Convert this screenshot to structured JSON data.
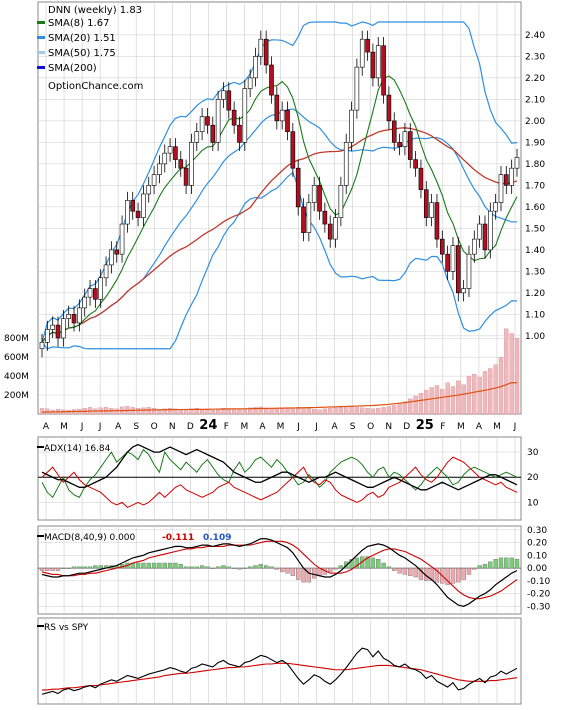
{
  "colors": {
    "up": "#ffffff",
    "down": "#b01020",
    "sma8": "#1a7a1a",
    "sma20": "#2e8fe0",
    "sma50": "#c0392b",
    "sma200": "#1010d0",
    "volume": "#f0b8bc",
    "adx": "#000000",
    "plus_di": "#1a7a1a",
    "minus_di": "#d00000",
    "macd": "#000000",
    "signal": "#d00000",
    "hist_pos": "#7acb7a",
    "hist_neg": "#f0a8ae",
    "rs": "#000000",
    "rs_ma": "#d00000",
    "grid": "#cccccc"
  },
  "chart_data": [
    {
      "type": "candlestick",
      "ticker_label": "DNN (weekly) 1.83",
      "legend": [
        {
          "label": "SMA(8) 1.67",
          "color": "#1a7a1a"
        },
        {
          "label": "SMA(20) 1.51",
          "color": "#2e8fe0"
        },
        {
          "label": "SMA(50) 1.75",
          "color": "#9ccbee"
        },
        {
          "label": "SMA(200)",
          "color": "#1010d0"
        }
      ],
      "source": "OptionChance.com",
      "x_ticks": [
        "A",
        "M",
        "J",
        "J",
        "A",
        "S",
        "O",
        "N",
        "D",
        "24",
        "F",
        "M",
        "A",
        "M",
        "J",
        "J",
        "A",
        "S",
        "O",
        "N",
        "D",
        "25",
        "F",
        "M",
        "A",
        "M",
        "J"
      ],
      "y_ticks": [
        "2.40",
        "2.30",
        "2.20",
        "2.10",
        "2.00",
        "1.90",
        "1.80",
        "1.70",
        "1.60",
        "1.50",
        "1.40",
        "1.30",
        "1.20",
        "1.10",
        "1.00"
      ],
      "ylim": [
        0.98,
        2.45
      ],
      "close": [
        0.97,
        1.03,
        1.05,
        0.99,
        1.08,
        1.1,
        1.06,
        1.13,
        1.18,
        1.22,
        1.17,
        1.27,
        1.33,
        1.4,
        1.38,
        1.52,
        1.63,
        1.58,
        1.55,
        1.66,
        1.7,
        1.75,
        1.8,
        1.85,
        1.88,
        1.82,
        1.78,
        1.7,
        1.9,
        1.95,
        2.02,
        1.98,
        1.9,
        2.1,
        2.14,
        2.05,
        1.98,
        1.9,
        2.15,
        2.2,
        2.3,
        2.38,
        2.26,
        2.12,
        2.0,
        2.05,
        1.95,
        1.78,
        1.6,
        1.48,
        1.62,
        1.7,
        1.58,
        1.52,
        1.45,
        1.55,
        1.7,
        1.9,
        2.05,
        2.25,
        2.38,
        2.32,
        2.2,
        2.35,
        2.12,
        2.0,
        1.9,
        1.88,
        1.95,
        1.82,
        1.78,
        1.68,
        1.55,
        1.62,
        1.45,
        1.38,
        1.3,
        1.42,
        1.2,
        1.22,
        1.38,
        1.45,
        1.52,
        1.4,
        1.58,
        1.62,
        1.75,
        1.7,
        1.78,
        1.83
      ]
    },
    {
      "type": "bar",
      "name": "volume",
      "y_ticks": [
        "800M",
        "600M",
        "400M",
        "200M"
      ],
      "ylim": [
        0,
        950
      ],
      "values": [
        60,
        55,
        40,
        50,
        45,
        40,
        48,
        52,
        60,
        70,
        55,
        65,
        70,
        60,
        55,
        75,
        80,
        70,
        60,
        65,
        70,
        60,
        50,
        55,
        60,
        55,
        50,
        45,
        55,
        60,
        50,
        45,
        40,
        50,
        60,
        55,
        50,
        45,
        55,
        65,
        70,
        75,
        60,
        55,
        50,
        55,
        60,
        65,
        70,
        55,
        60,
        50,
        45,
        55,
        60,
        65,
        70,
        80,
        75,
        70,
        65,
        60,
        55,
        60,
        70,
        80,
        90,
        110,
        130,
        160,
        190,
        220,
        250,
        280,
        300,
        260,
        330,
        290,
        350,
        310,
        400,
        420,
        390,
        450,
        480,
        520,
        600,
        900,
        850,
        800
      ],
      "ma": [
        20,
        21,
        22,
        23,
        24,
        25,
        26,
        27,
        28,
        30,
        31,
        32,
        33,
        34,
        35,
        36,
        37,
        38,
        40,
        41,
        42,
        43,
        44,
        45,
        46,
        47,
        47,
        48,
        48,
        49,
        49,
        50,
        51,
        52,
        53,
        54,
        54,
        55,
        55,
        56,
        57,
        58,
        59,
        60,
        61,
        62,
        63,
        64,
        65,
        66,
        67,
        68,
        70,
        72,
        74,
        76,
        78,
        80,
        82,
        84,
        86,
        88,
        90,
        94,
        98,
        102,
        108,
        114,
        120,
        128,
        136,
        144,
        152,
        160,
        168,
        176,
        184,
        192,
        200,
        210,
        220,
        230,
        240,
        250,
        262,
        274,
        290,
        310,
        330,
        330
      ]
    },
    {
      "type": "line",
      "name": "ADX(14) 16.84",
      "y_ticks": [
        "30",
        "20",
        "10"
      ],
      "ylim": [
        3,
        36
      ],
      "adx": [
        22,
        21,
        20,
        19,
        19,
        18,
        17,
        16,
        16,
        17,
        18,
        19,
        20,
        22,
        24,
        27,
        30,
        32,
        33,
        32,
        31,
        30,
        30,
        31,
        32,
        31,
        30,
        29,
        30,
        31,
        30,
        29,
        28,
        27,
        26,
        24,
        22,
        21,
        20,
        19,
        18,
        18,
        19,
        20,
        21,
        22,
        22,
        21,
        20,
        19,
        18,
        19,
        20,
        20,
        21,
        22,
        21,
        20,
        19,
        18,
        17,
        16,
        16,
        17,
        18,
        19,
        20,
        19,
        18,
        17,
        16,
        15,
        15,
        16,
        17,
        18,
        17,
        16,
        15,
        16,
        17,
        18,
        19,
        20,
        21,
        21,
        20,
        19,
        18,
        17
      ],
      "plus_di": [
        18,
        14,
        12,
        16,
        20,
        15,
        13,
        12,
        16,
        19,
        21,
        24,
        27,
        30,
        26,
        28,
        30,
        29,
        27,
        31,
        29,
        25,
        22,
        30,
        27,
        25,
        23,
        26,
        24,
        22,
        25,
        27,
        24,
        21,
        19,
        18,
        23,
        26,
        22,
        24,
        27,
        28,
        26,
        24,
        27,
        25,
        22,
        20,
        17,
        18,
        21,
        19,
        16,
        18,
        22,
        24,
        26,
        27,
        28,
        27,
        25,
        22,
        20,
        23,
        24,
        20,
        22,
        21,
        19,
        17,
        15,
        17,
        20,
        22,
        24,
        22,
        20,
        17,
        18,
        21,
        23,
        24,
        23,
        22,
        21,
        20,
        21,
        22,
        21,
        20
      ],
      "minus_di": [
        20,
        22,
        24,
        21,
        18,
        20,
        22,
        19,
        17,
        16,
        15,
        14,
        12,
        10,
        9,
        10,
        8,
        9,
        10,
        9,
        10,
        12,
        14,
        12,
        14,
        16,
        17,
        15,
        14,
        13,
        12,
        13,
        14,
        16,
        17,
        18,
        16,
        15,
        14,
        13,
        12,
        11,
        12,
        13,
        14,
        16,
        18,
        20,
        22,
        24,
        20,
        18,
        17,
        19,
        18,
        15,
        13,
        12,
        11,
        10,
        11,
        13,
        14,
        12,
        13,
        16,
        17,
        18,
        20,
        22,
        24,
        21,
        19,
        18,
        20,
        23,
        26,
        28,
        27,
        26,
        24,
        22,
        20,
        19,
        18,
        17,
        18,
        16,
        15,
        14
      ]
    },
    {
      "type": "line",
      "name": "MACD(8,40,9) 0.000",
      "annotations": [
        "-0.111",
        "0.109"
      ],
      "y_ticks": [
        "0.30",
        "0.20",
        "0.10",
        "0.00",
        "-0.10",
        "-0.20",
        "-0.30"
      ],
      "ylim": [
        -0.36,
        0.33
      ],
      "macd": [
        -0.05,
        -0.06,
        -0.07,
        -0.07,
        -0.06,
        -0.06,
        -0.05,
        -0.04,
        -0.04,
        -0.03,
        -0.02,
        -0.01,
        0.0,
        0.01,
        0.02,
        0.04,
        0.06,
        0.08,
        0.09,
        0.1,
        0.12,
        0.13,
        0.14,
        0.15,
        0.16,
        0.17,
        0.17,
        0.16,
        0.16,
        0.17,
        0.18,
        0.18,
        0.17,
        0.18,
        0.19,
        0.19,
        0.18,
        0.17,
        0.18,
        0.19,
        0.21,
        0.23,
        0.23,
        0.22,
        0.2,
        0.18,
        0.16,
        0.12,
        0.06,
        0.0,
        -0.04,
        -0.05,
        -0.06,
        -0.07,
        -0.07,
        -0.05,
        -0.02,
        0.02,
        0.06,
        0.1,
        0.14,
        0.17,
        0.18,
        0.19,
        0.18,
        0.16,
        0.13,
        0.1,
        0.08,
        0.05,
        0.02,
        -0.02,
        -0.06,
        -0.09,
        -0.13,
        -0.18,
        -0.23,
        -0.26,
        -0.29,
        -0.3,
        -0.28,
        -0.25,
        -0.22,
        -0.2,
        -0.17,
        -0.13,
        -0.1,
        -0.07,
        -0.04,
        -0.02
      ],
      "signal": [
        -0.03,
        -0.04,
        -0.05,
        -0.05,
        -0.06,
        -0.06,
        -0.06,
        -0.05,
        -0.05,
        -0.04,
        -0.04,
        -0.03,
        -0.02,
        -0.01,
        0.0,
        0.01,
        0.02,
        0.04,
        0.05,
        0.06,
        0.08,
        0.09,
        0.1,
        0.11,
        0.12,
        0.13,
        0.14,
        0.15,
        0.15,
        0.16,
        0.16,
        0.17,
        0.17,
        0.17,
        0.17,
        0.18,
        0.18,
        0.18,
        0.18,
        0.18,
        0.19,
        0.2,
        0.21,
        0.21,
        0.21,
        0.21,
        0.2,
        0.18,
        0.15,
        0.11,
        0.07,
        0.03,
        0.0,
        -0.02,
        -0.04,
        -0.04,
        -0.04,
        -0.03,
        -0.01,
        0.02,
        0.05,
        0.08,
        0.1,
        0.12,
        0.14,
        0.15,
        0.15,
        0.14,
        0.13,
        0.11,
        0.09,
        0.07,
        0.04,
        0.01,
        -0.02,
        -0.06,
        -0.1,
        -0.14,
        -0.18,
        -0.21,
        -0.23,
        -0.24,
        -0.24,
        -0.23,
        -0.22,
        -0.2,
        -0.18,
        -0.15,
        -0.12,
        -0.09
      ]
    },
    {
      "type": "line",
      "name": "RS vs SPY",
      "ylim": [
        0,
        100
      ],
      "rs": [
        8,
        10,
        12,
        9,
        14,
        16,
        13,
        15,
        18,
        20,
        17,
        22,
        25,
        28,
        26,
        30,
        34,
        32,
        30,
        33,
        36,
        38,
        40,
        42,
        45,
        43,
        40,
        38,
        44,
        46,
        50,
        48,
        46,
        52,
        55,
        50,
        48,
        46,
        52,
        54,
        58,
        62,
        60,
        56,
        52,
        55,
        50,
        40,
        30,
        22,
        28,
        35,
        32,
        26,
        22,
        28,
        36,
        45,
        55,
        65,
        72,
        70,
        60,
        68,
        58,
        54,
        48,
        46,
        50,
        44,
        42,
        38,
        30,
        34,
        26,
        22,
        18,
        24,
        14,
        16,
        22,
        26,
        30,
        24,
        32,
        34,
        40,
        36,
        40,
        44
      ],
      "rs_ma": [
        14,
        14,
        15,
        15,
        16,
        17,
        17,
        18,
        19,
        20,
        20,
        21,
        22,
        23,
        24,
        25,
        26,
        27,
        28,
        29,
        30,
        31,
        32,
        34,
        35,
        36,
        37,
        37,
        38,
        39,
        40,
        41,
        42,
        43,
        44,
        45,
        45,
        46,
        46,
        47,
        48,
        49,
        50,
        50,
        51,
        51,
        51,
        50,
        49,
        48,
        47,
        46,
        45,
        44,
        43,
        42,
        42,
        42,
        43,
        44,
        45,
        46,
        47,
        48,
        48,
        48,
        47,
        46,
        45,
        44,
        43,
        42,
        40,
        38,
        36,
        34,
        32,
        30,
        28,
        27,
        26,
        26,
        26,
        26,
        27,
        27,
        28,
        29,
        30,
        31
      ]
    }
  ]
}
